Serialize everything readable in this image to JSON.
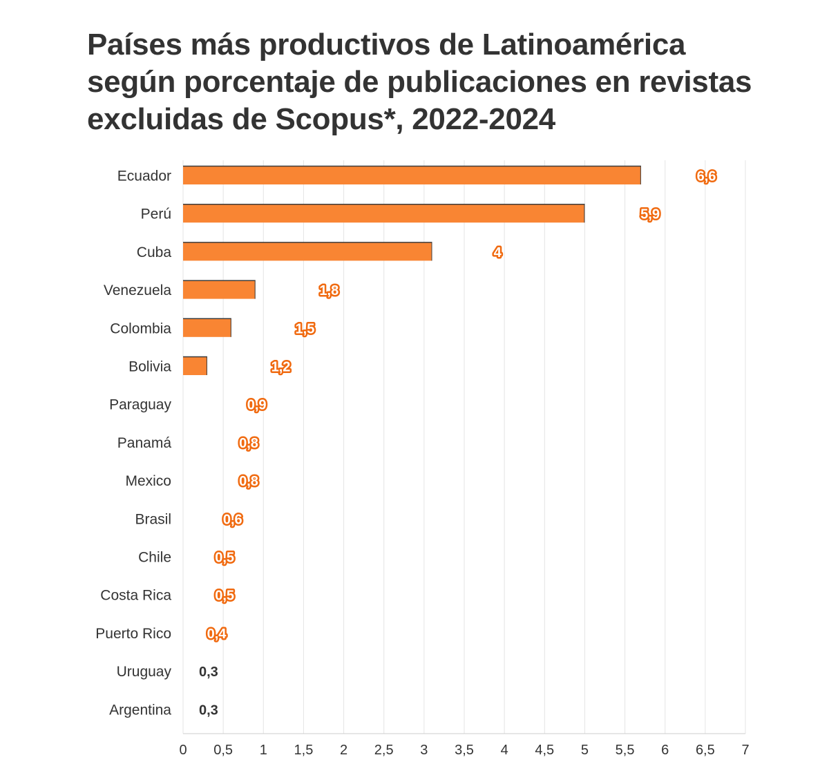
{
  "colors": {
    "bar": "#f98533",
    "bar_top": "#3d3d3d",
    "label_orange": "#f06a10",
    "label_dark": "#333333",
    "grid": "#e4e4e4",
    "text": "#333333"
  },
  "chart_data": {
    "type": "bar",
    "orientation": "horizontal",
    "title": "Países más productivos de Latinoamérica según porcentaje de publicaciones en revistas excluidas de Scopus*, 2022-2024",
    "xlabel": "",
    "ylabel": "",
    "xlim": [
      0,
      7
    ],
    "grid": true,
    "categories": [
      "Ecuador",
      "Perú",
      "Cuba",
      "Venezuela",
      "Colombia",
      "Bolivia",
      "Paraguay",
      "Panamá",
      "Mexico",
      "Brasil",
      "Chile",
      "Costa Rica",
      "Puerto Rico",
      "Uruguay",
      "Argentina"
    ],
    "values": [
      6.6,
      5.9,
      4,
      1.8,
      1.5,
      1.2,
      0.9,
      0.8,
      0.8,
      0.6,
      0.5,
      0.5,
      0.4,
      0.3,
      0.3
    ],
    "value_labels": [
      "6,6",
      "5,9",
      "4",
      "1,8",
      "1,5",
      "1,2",
      "0,9",
      "0,8",
      "0,8",
      "0,6",
      "0,5",
      "0,5",
      "0,4",
      "0,3",
      "0,3"
    ],
    "ticks": [
      0,
      0.5,
      1,
      1.5,
      2,
      2.5,
      3,
      3.5,
      4,
      4.5,
      5,
      5.5,
      6,
      6.5,
      7
    ],
    "tick_labels": [
      "0",
      "0,5",
      "1",
      "1,5",
      "2",
      "2,5",
      "3",
      "3,5",
      "4",
      "4,5",
      "5",
      "5,5",
      "6",
      "6,5",
      "7"
    ]
  }
}
